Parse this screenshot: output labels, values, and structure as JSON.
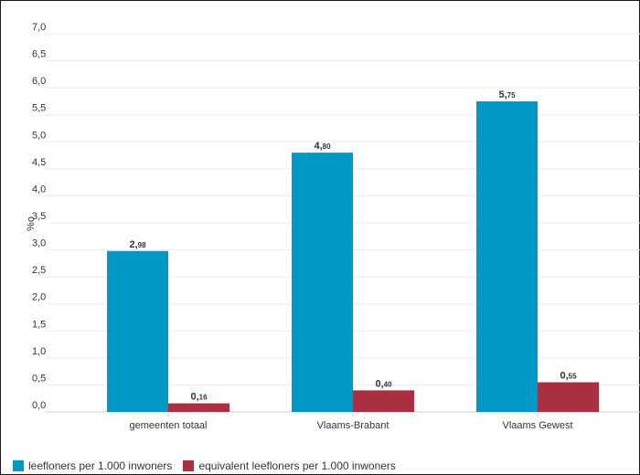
{
  "chart_data": {
    "type": "bar",
    "ylabel": "%o",
    "ylim": [
      0,
      7
    ],
    "ytick_labels": [
      "0,0",
      "0,5",
      "1,0",
      "1,5",
      "2,0",
      "2,5",
      "3,0",
      "3,5",
      "4,0",
      "4,5",
      "5,0",
      "5,5",
      "6,0",
      "6,5",
      "7,0"
    ],
    "categories": [
      "gemeenten totaal",
      "Vlaams-Brabant",
      "Vlaams Gewest"
    ],
    "series": [
      {
        "name": "leefloners per 1.000 inwoners",
        "color": "#0099c6",
        "values": [
          2.98,
          4.8,
          5.75
        ],
        "labels_int": [
          "2,",
          "4,",
          "5,"
        ],
        "labels_dec": [
          "98",
          "80",
          "75"
        ]
      },
      {
        "name": "equivalent leefloners per 1.000 inwoners",
        "color": "#a83040",
        "values": [
          0.16,
          0.4,
          0.55
        ],
        "labels_int": [
          "0,",
          "0,",
          "0,"
        ],
        "labels_dec": [
          "16",
          "40",
          "55"
        ]
      }
    ],
    "grid": true,
    "legend": "bottom-left"
  }
}
